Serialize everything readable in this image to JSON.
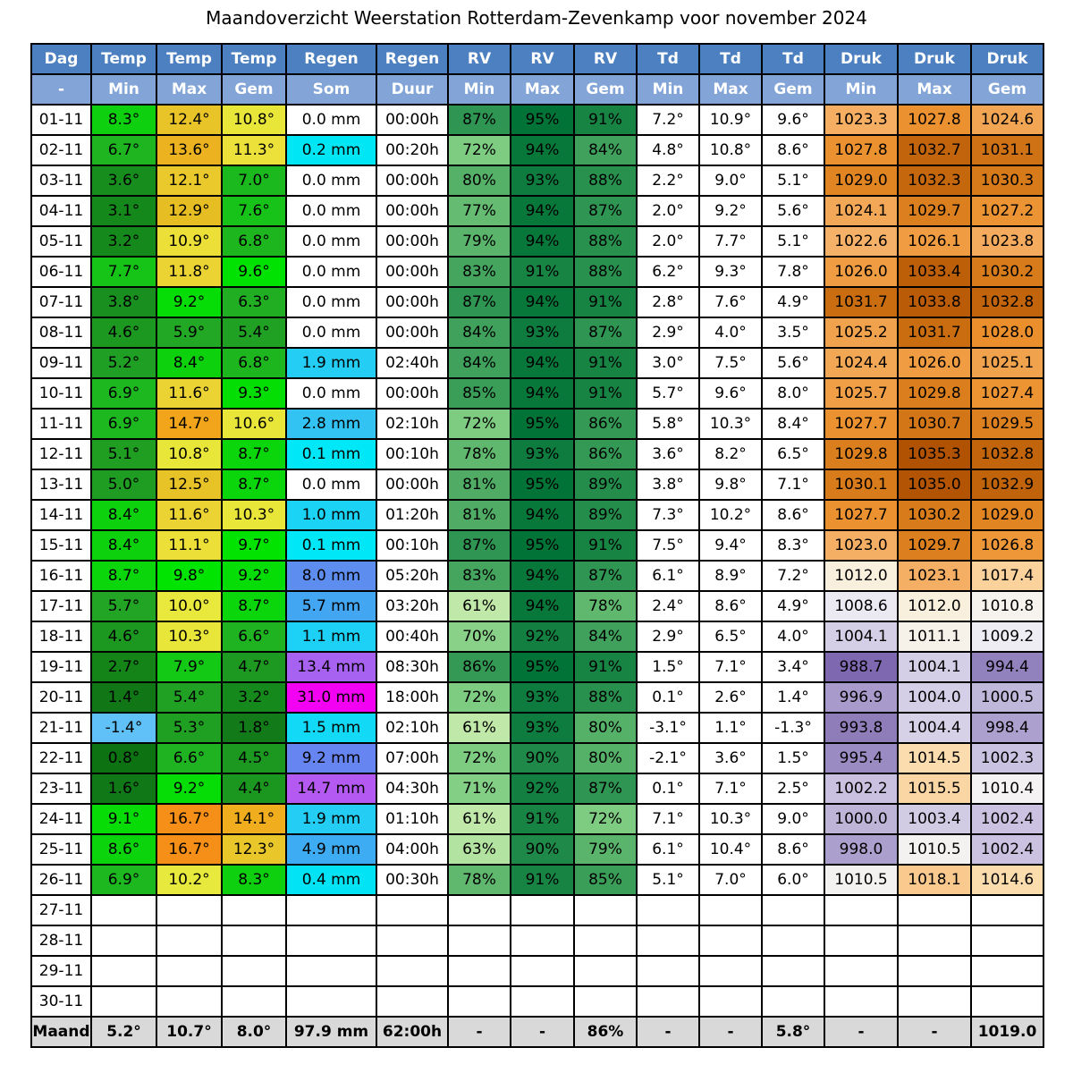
{
  "title": "Maandoverzicht Weerstation Rotterdam-Zevenkamp voor november 2024",
  "chart_data": {
    "type": "table",
    "title": "Maandoverzicht Weerstation Rotterdam-Zevenkamp voor november 2024",
    "header_row1": [
      "Dag",
      "Temp",
      "Temp",
      "Temp",
      "Regen",
      "Regen",
      "RV",
      "RV",
      "RV",
      "Td",
      "Td",
      "Td",
      "Druk",
      "Druk",
      "Druk"
    ],
    "header_row2": [
      "-",
      "Min",
      "Max",
      "Gem",
      "Som",
      "Duur",
      "Min",
      "Max",
      "Gem",
      "Min",
      "Max",
      "Gem",
      "Min",
      "Max",
      "Gem"
    ],
    "rows": [
      [
        "01-11",
        "8.3°",
        "12.4°",
        "10.8°",
        "0.0 mm",
        "00:00h",
        "87%",
        "95%",
        "91%",
        "7.2°",
        "10.9°",
        "9.6°",
        "1023.3",
        "1027.8",
        "1024.6"
      ],
      [
        "02-11",
        "6.7°",
        "13.6°",
        "11.3°",
        "0.2 mm",
        "00:20h",
        "72%",
        "94%",
        "84%",
        "4.8°",
        "10.8°",
        "8.6°",
        "1027.8",
        "1032.7",
        "1031.1"
      ],
      [
        "03-11",
        "3.6°",
        "12.1°",
        "7.0°",
        "0.0 mm",
        "00:00h",
        "80%",
        "93%",
        "88%",
        "2.2°",
        "9.0°",
        "5.1°",
        "1029.0",
        "1032.3",
        "1030.3"
      ],
      [
        "04-11",
        "3.1°",
        "12.9°",
        "7.6°",
        "0.0 mm",
        "00:00h",
        "77%",
        "94%",
        "87%",
        "2.0°",
        "9.2°",
        "5.6°",
        "1024.1",
        "1029.7",
        "1027.2"
      ],
      [
        "05-11",
        "3.2°",
        "10.9°",
        "6.8°",
        "0.0 mm",
        "00:00h",
        "79%",
        "94%",
        "88%",
        "2.0°",
        "7.7°",
        "5.1°",
        "1022.6",
        "1026.1",
        "1023.8"
      ],
      [
        "06-11",
        "7.7°",
        "11.8°",
        "9.6°",
        "0.0 mm",
        "00:00h",
        "83%",
        "91%",
        "88%",
        "6.2°",
        "9.3°",
        "7.8°",
        "1026.0",
        "1033.4",
        "1030.2"
      ],
      [
        "07-11",
        "3.8°",
        "9.2°",
        "6.3°",
        "0.0 mm",
        "00:00h",
        "87%",
        "94%",
        "91%",
        "2.8°",
        "7.6°",
        "4.9°",
        "1031.7",
        "1033.8",
        "1032.8"
      ],
      [
        "08-11",
        "4.6°",
        "5.9°",
        "5.4°",
        "0.0 mm",
        "00:00h",
        "84%",
        "93%",
        "87%",
        "2.9°",
        "4.0°",
        "3.5°",
        "1025.2",
        "1031.7",
        "1028.0"
      ],
      [
        "09-11",
        "5.2°",
        "8.4°",
        "6.8°",
        "1.9 mm",
        "02:40h",
        "84%",
        "94%",
        "91%",
        "3.0°",
        "7.5°",
        "5.6°",
        "1024.4",
        "1026.0",
        "1025.1"
      ],
      [
        "10-11",
        "6.9°",
        "11.6°",
        "9.3°",
        "0.0 mm",
        "00:00h",
        "85%",
        "94%",
        "91%",
        "5.7°",
        "9.6°",
        "8.0°",
        "1025.7",
        "1029.8",
        "1027.4"
      ],
      [
        "11-11",
        "6.9°",
        "14.7°",
        "10.6°",
        "2.8 mm",
        "02:10h",
        "72%",
        "95%",
        "86%",
        "5.8°",
        "10.3°",
        "8.4°",
        "1027.7",
        "1030.7",
        "1029.5"
      ],
      [
        "12-11",
        "5.1°",
        "10.8°",
        "8.7°",
        "0.1 mm",
        "00:10h",
        "78%",
        "93%",
        "86%",
        "3.6°",
        "8.2°",
        "6.5°",
        "1029.8",
        "1035.3",
        "1032.8"
      ],
      [
        "13-11",
        "5.0°",
        "12.5°",
        "8.7°",
        "0.0 mm",
        "00:00h",
        "81%",
        "95%",
        "89%",
        "3.8°",
        "9.8°",
        "7.1°",
        "1030.1",
        "1035.0",
        "1032.9"
      ],
      [
        "14-11",
        "8.4°",
        "11.6°",
        "10.3°",
        "1.0 mm",
        "01:20h",
        "81%",
        "94%",
        "89%",
        "7.3°",
        "10.2°",
        "8.6°",
        "1027.7",
        "1030.2",
        "1029.0"
      ],
      [
        "15-11",
        "8.4°",
        "11.1°",
        "9.7°",
        "0.1 mm",
        "00:10h",
        "87%",
        "95%",
        "91%",
        "7.5°",
        "9.4°",
        "8.3°",
        "1023.0",
        "1029.7",
        "1026.8"
      ],
      [
        "16-11",
        "8.7°",
        "9.8°",
        "9.2°",
        "8.0 mm",
        "05:20h",
        "83%",
        "94%",
        "87%",
        "6.1°",
        "8.9°",
        "7.2°",
        "1012.0",
        "1023.1",
        "1017.4"
      ],
      [
        "17-11",
        "5.7°",
        "10.0°",
        "8.7°",
        "5.7 mm",
        "03:20h",
        "61%",
        "94%",
        "78%",
        "2.4°",
        "8.6°",
        "4.9°",
        "1008.6",
        "1012.0",
        "1010.8"
      ],
      [
        "18-11",
        "4.6°",
        "10.3°",
        "6.6°",
        "1.1 mm",
        "00:40h",
        "70%",
        "92%",
        "84%",
        "2.9°",
        "6.5°",
        "4.0°",
        "1004.1",
        "1011.1",
        "1009.2"
      ],
      [
        "19-11",
        "2.7°",
        "7.9°",
        "4.7°",
        "13.4 mm",
        "08:30h",
        "86%",
        "95%",
        "91%",
        "1.5°",
        "7.1°",
        "3.4°",
        "988.7",
        "1004.1",
        "994.4"
      ],
      [
        "20-11",
        "1.4°",
        "5.4°",
        "3.2°",
        "31.0 mm",
        "18:00h",
        "72%",
        "93%",
        "88%",
        "0.1°",
        "2.6°",
        "1.4°",
        "996.9",
        "1004.0",
        "1000.5"
      ],
      [
        "21-11",
        "-1.4°",
        "5.3°",
        "1.8°",
        "1.5 mm",
        "02:10h",
        "61%",
        "93%",
        "80%",
        "-3.1°",
        "1.1°",
        "-1.3°",
        "993.8",
        "1004.4",
        "998.4"
      ],
      [
        "22-11",
        "0.8°",
        "6.6°",
        "4.5°",
        "9.2 mm",
        "07:00h",
        "72%",
        "90%",
        "80%",
        "-2.1°",
        "3.6°",
        "1.5°",
        "995.4",
        "1014.5",
        "1002.3"
      ],
      [
        "23-11",
        "1.6°",
        "9.2°",
        "4.4°",
        "14.7 mm",
        "04:30h",
        "71%",
        "92%",
        "87%",
        "0.1°",
        "7.1°",
        "2.5°",
        "1002.2",
        "1015.5",
        "1010.4"
      ],
      [
        "24-11",
        "9.1°",
        "16.7°",
        "14.1°",
        "1.9 mm",
        "01:10h",
        "61%",
        "91%",
        "72%",
        "7.1°",
        "10.3°",
        "9.0°",
        "1000.0",
        "1003.4",
        "1002.4"
      ],
      [
        "25-11",
        "8.6°",
        "16.7°",
        "12.3°",
        "4.9 mm",
        "04:00h",
        "63%",
        "90%",
        "79%",
        "6.1°",
        "10.4°",
        "8.6°",
        "998.0",
        "1010.5",
        "1002.4"
      ],
      [
        "26-11",
        "6.9°",
        "10.2°",
        "8.3°",
        "0.4 mm",
        "00:30h",
        "78%",
        "91%",
        "85%",
        "5.1°",
        "7.0°",
        "6.0°",
        "1010.5",
        "1018.1",
        "1014.6"
      ],
      [
        "27-11",
        "",
        "",
        "",
        "",
        "",
        "",
        "",
        "",
        "",
        "",
        "",
        "",
        "",
        ""
      ],
      [
        "28-11",
        "",
        "",
        "",
        "",
        "",
        "",
        "",
        "",
        "",
        "",
        "",
        "",
        "",
        ""
      ],
      [
        "29-11",
        "",
        "",
        "",
        "",
        "",
        "",
        "",
        "",
        "",
        "",
        "",
        "",
        "",
        ""
      ],
      [
        "30-11",
        "",
        "",
        "",
        "",
        "",
        "",
        "",
        "",
        "",
        "",
        "",
        "",
        "",
        ""
      ]
    ],
    "summary_row": [
      "Maand",
      "5.2°",
      "10.7°",
      "8.0°",
      "97.9 mm",
      "62:00h",
      "-",
      "-",
      "86%",
      "-",
      "-",
      "5.8°",
      "-",
      "-",
      "1019.0"
    ]
  },
  "styles": {
    "header1_bg": "#4d80c0",
    "header2_bg": "#82a4d6",
    "header_text": "#ffffff",
    "border": "#000000",
    "summary_bg": "#d9d9d9",
    "cell_colors": [
      [
        "#ffffff",
        "#0fd00f",
        "#e8c429",
        "#e9e63a",
        "#ffffff",
        "#ffffff",
        "#2f9552",
        "#027337",
        "#188444",
        "#ffffff",
        "#ffffff",
        "#ffffff",
        "#f5ae62",
        "#eb912f",
        "#f2a654"
      ],
      [
        "#ffffff",
        "#1eb520",
        "#edb21f",
        "#ece03a",
        "#00e6f5",
        "#ffffff",
        "#7ecc82",
        "#08783a",
        "#3fa15c",
        "#ffffff",
        "#ffffff",
        "#ffffff",
        "#eb912f",
        "#c2640b",
        "#cf7215"
      ],
      [
        "#ffffff",
        "#178d1d",
        "#e9c92b",
        "#1cb91e",
        "#ffffff",
        "#ffffff",
        "#55b068",
        "#0d7c3e",
        "#29914e",
        "#ffffff",
        "#ffffff",
        "#ffffff",
        "#e18523",
        "#c5670d",
        "#d67a1a"
      ],
      [
        "#ffffff",
        "#15881b",
        "#e7bd24",
        "#17c319",
        "#ffffff",
        "#ffffff",
        "#65bb71",
        "#08783a",
        "#2f9552",
        "#ffffff",
        "#ffffff",
        "#ffffff",
        "#f3a857",
        "#dc801f",
        "#ec9434"
      ],
      [
        "#ffffff",
        "#16891c",
        "#ebdf38",
        "#1eb61f",
        "#ffffff",
        "#ffffff",
        "#5bb46b",
        "#08783a",
        "#29914e",
        "#ffffff",
        "#ffffff",
        "#ffffff",
        "#f6b169",
        "#ef9c42",
        "#f4ab5d"
      ],
      [
        "#ffffff",
        "#16c418",
        "#ecd334",
        "#02e202",
        "#ffffff",
        "#ffffff",
        "#45a55f",
        "#188444",
        "#29914e",
        "#ffffff",
        "#ffffff",
        "#ffffff",
        "#ef9c42",
        "#bd5e08",
        "#d77b1b"
      ],
      [
        "#ffffff",
        "#188f1e",
        "#06dd06",
        "#21ae23",
        "#ffffff",
        "#ffffff",
        "#2f9552",
        "#08783a",
        "#188444",
        "#ffffff",
        "#ffffff",
        "#ffffff",
        "#ca6d11",
        "#ba5b07",
        "#c2640b"
      ],
      [
        "#ffffff",
        "#1c9820",
        "#23a826",
        "#20a124",
        "#ffffff",
        "#ffffff",
        "#3fa15c",
        "#0d7c3e",
        "#2f9552",
        "#ffffff",
        "#ffffff",
        "#ffffff",
        "#f1a24c",
        "#ca6d11",
        "#ea8f2c"
      ],
      [
        "#ffffff",
        "#1f9f23",
        "#0ed10e",
        "#1eb61f",
        "#24cdf4",
        "#ffffff",
        "#3fa15c",
        "#08783a",
        "#188444",
        "#ffffff",
        "#ffffff",
        "#ffffff",
        "#f2a755",
        "#ef9c42",
        "#f1a24c"
      ],
      [
        "#ffffff",
        "#1db71f",
        "#ecd334",
        "#05de05",
        "#ffffff",
        "#ffffff",
        "#3a9d58",
        "#08783a",
        "#188444",
        "#ffffff",
        "#ffffff",
        "#ffffff",
        "#f09f47",
        "#db7f1e",
        "#ec9332"
      ],
      [
        "#ffffff",
        "#1db71f",
        "#f2a51a",
        "#e9e63a",
        "#32c3f3",
        "#ffffff",
        "#7ecc82",
        "#027337",
        "#349955",
        "#ffffff",
        "#ffffff",
        "#ffffff",
        "#eb9130",
        "#d37618",
        "#dd8120"
      ],
      [
        "#ffffff",
        "#1f9e22",
        "#e9e63a",
        "#0bd50b",
        "#00e7f7",
        "#ffffff",
        "#60b86e",
        "#0d7c3e",
        "#349955",
        "#ffffff",
        "#ffffff",
        "#ffffff",
        "#db7f1e",
        "#b15203",
        "#c2640b"
      ],
      [
        "#ffffff",
        "#1e9d22",
        "#e8c328",
        "#0bd50b",
        "#ffffff",
        "#ffffff",
        "#50ac65",
        "#027337",
        "#248d4b",
        "#ffffff",
        "#ffffff",
        "#ffffff",
        "#d77b1b",
        "#b35404",
        "#c1630b"
      ],
      [
        "#ffffff",
        "#0ed10e",
        "#ecd334",
        "#e9e63a",
        "#1ad3f5",
        "#ffffff",
        "#50ac65",
        "#08783a",
        "#248d4b",
        "#ffffff",
        "#ffffff",
        "#ffffff",
        "#eb9130",
        "#d77b1b",
        "#e18523"
      ],
      [
        "#ffffff",
        "#0ed10e",
        "#ebdf38",
        "#02e302",
        "#00e7f7",
        "#ffffff",
        "#2f9552",
        "#027337",
        "#188444",
        "#ffffff",
        "#ffffff",
        "#ffffff",
        "#f5af65",
        "#dc801f",
        "#ed9739"
      ],
      [
        "#ffffff",
        "#0bd50b",
        "#01e401",
        "#06dd06",
        "#5e8df0",
        "#ffffff",
        "#45a55f",
        "#08783a",
        "#2f9552",
        "#ffffff",
        "#ffffff",
        "#ffffff",
        "#f8efdd",
        "#f5af64",
        "#fbd29b"
      ],
      [
        "#ffffff",
        "#22a525",
        "#e9e83c",
        "#0bd50b",
        "#43a6f2",
        "#ffffff",
        "#c0e8a8",
        "#08783a",
        "#60b86e",
        "#ffffff",
        "#ffffff",
        "#ffffff",
        "#ebe9f2",
        "#f8efdd",
        "#f6f3ee"
      ],
      [
        "#ffffff",
        "#1c9820",
        "#e9e63a",
        "#1fb321",
        "#1cd1f5",
        "#ffffff",
        "#89d189",
        "#138041",
        "#3fa15c",
        "#ffffff",
        "#ffffff",
        "#ffffff",
        "#d4cfe6",
        "#f7f2e9",
        "#efedf4"
      ],
      [
        "#ffffff",
        "#148419",
        "#14c816",
        "#1d9921",
        "#a862f2",
        "#ffffff",
        "#349955",
        "#027337",
        "#188444",
        "#ffffff",
        "#ffffff",
        "#ffffff",
        "#7e68b0",
        "#d4cfe6",
        "#9181bd"
      ],
      [
        "#ffffff",
        "#107616",
        "#20a124",
        "#16891c",
        "#f201f2",
        "#ffffff",
        "#7ecc82",
        "#0d7c3e",
        "#29914e",
        "#ffffff",
        "#ffffff",
        "#ffffff",
        "#a89bcb",
        "#d4cee6",
        "#c0b8da"
      ],
      [
        "#ffffff",
        "#5fc1f7",
        "#20a023",
        "#127a18",
        "#12daf6",
        "#ffffff",
        "#c0e8a8",
        "#0d7c3e",
        "#55b068",
        "#ffffff",
        "#ffffff",
        "#ffffff",
        "#8f7dba",
        "#d6d1e7",
        "#aca0ce"
      ],
      [
        "#ffffff",
        "#0d7212",
        "#1fb321",
        "#1c9720",
        "#6785f0",
        "#ffffff",
        "#7ecc82",
        "#1e8948",
        "#55b068",
        "#ffffff",
        "#ffffff",
        "#ffffff",
        "#9a8bc3",
        "#fbdcae",
        "#c9c2e0"
      ],
      [
        "#ffffff",
        "#117817",
        "#06dd06",
        "#1b961f",
        "#b45af2",
        "#ffffff",
        "#83cf86",
        "#138041",
        "#2f9552",
        "#ffffff",
        "#ffffff",
        "#ffffff",
        "#c9c1df",
        "#fad6a4",
        "#f4f2f2"
      ],
      [
        "#ffffff",
        "#07dc07",
        "#f68f17",
        "#f0ad1d",
        "#24cdf4",
        "#ffffff",
        "#c0e8a8",
        "#188444",
        "#7ecc82",
        "#ffffff",
        "#ffffff",
        "#ffffff",
        "#bdb4d8",
        "#d1cbe4",
        "#cac2e0"
      ],
      [
        "#ffffff",
        "#0cd40c",
        "#f68f17",
        "#e9c72a",
        "#3eacf2",
        "#ffffff",
        "#b3e3a0",
        "#1e8948",
        "#5bb46b",
        "#ffffff",
        "#ffffff",
        "#ffffff",
        "#ab9fcd",
        "#f4f2f1",
        "#cac2e0"
      ],
      [
        "#ffffff",
        "#1db71f",
        "#e7ea3c",
        "#0fd00f",
        "#02e4f6",
        "#ffffff",
        "#60b86e",
        "#188444",
        "#3a9d58",
        "#ffffff",
        "#ffffff",
        "#ffffff",
        "#f4f2f1",
        "#f9c98d",
        "#fbdcad"
      ],
      [
        "#ffffff",
        "#ffffff",
        "#ffffff",
        "#ffffff",
        "#ffffff",
        "#ffffff",
        "#ffffff",
        "#ffffff",
        "#ffffff",
        "#ffffff",
        "#ffffff",
        "#ffffff",
        "#ffffff",
        "#ffffff",
        "#ffffff"
      ],
      [
        "#ffffff",
        "#ffffff",
        "#ffffff",
        "#ffffff",
        "#ffffff",
        "#ffffff",
        "#ffffff",
        "#ffffff",
        "#ffffff",
        "#ffffff",
        "#ffffff",
        "#ffffff",
        "#ffffff",
        "#ffffff",
        "#ffffff"
      ],
      [
        "#ffffff",
        "#ffffff",
        "#ffffff",
        "#ffffff",
        "#ffffff",
        "#ffffff",
        "#ffffff",
        "#ffffff",
        "#ffffff",
        "#ffffff",
        "#ffffff",
        "#ffffff",
        "#ffffff",
        "#ffffff",
        "#ffffff"
      ],
      [
        "#ffffff",
        "#ffffff",
        "#ffffff",
        "#ffffff",
        "#ffffff",
        "#ffffff",
        "#ffffff",
        "#ffffff",
        "#ffffff",
        "#ffffff",
        "#ffffff",
        "#ffffff",
        "#ffffff",
        "#ffffff",
        "#ffffff"
      ]
    ]
  }
}
